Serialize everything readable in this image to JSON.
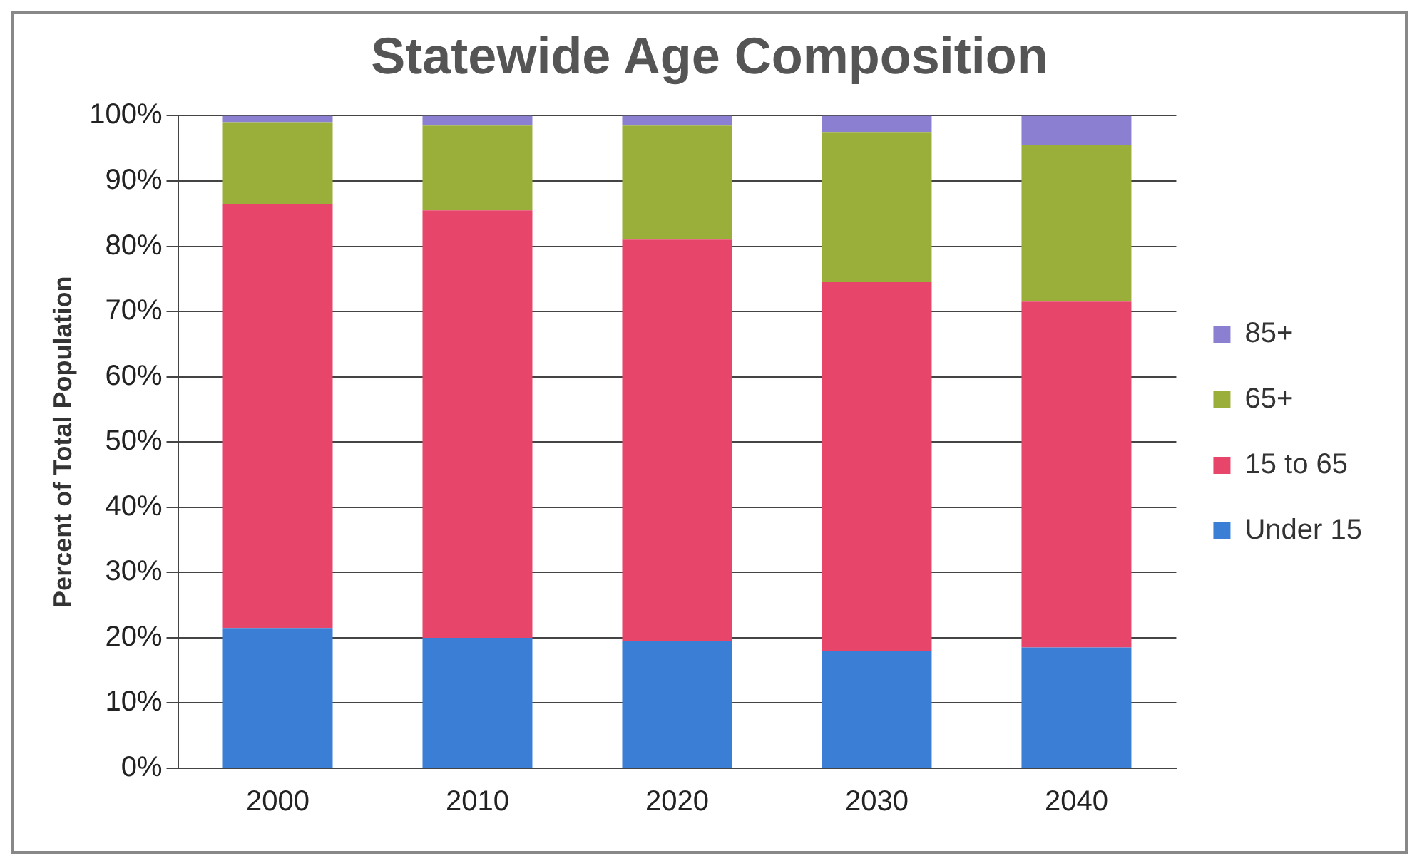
{
  "chart_data": {
    "type": "bar",
    "title": "Statewide Age Composition",
    "ylabel": "Percent of Total Population",
    "categories": [
      "2000",
      "2010",
      "2020",
      "2030",
      "2040"
    ],
    "stacked": true,
    "series": [
      {
        "name": "Under 15",
        "color": "#3a7fd5",
        "values": [
          21.5,
          20,
          19.5,
          18,
          18.5
        ]
      },
      {
        "name": "15 to 65",
        "color": "#e8456a",
        "values": [
          65,
          65.5,
          61.5,
          56.5,
          53
        ]
      },
      {
        "name": "65+",
        "color": "#9aaf3a",
        "values": [
          12.5,
          13,
          17.5,
          23,
          24
        ]
      },
      {
        "name": "85+",
        "color": "#8a7fd0",
        "values": [
          1,
          1.5,
          1.5,
          2.5,
          4.5
        ]
      }
    ],
    "ylim": [
      0,
      100
    ],
    "yticks": [
      {
        "value": 0,
        "label": "0%"
      },
      {
        "value": 10,
        "label": "10%"
      },
      {
        "value": 20,
        "label": "20%"
      },
      {
        "value": 30,
        "label": "30%"
      },
      {
        "value": 40,
        "label": "40%"
      },
      {
        "value": 50,
        "label": "50%"
      },
      {
        "value": 60,
        "label": "60%"
      },
      {
        "value": 70,
        "label": "70%"
      },
      {
        "value": 80,
        "label": "80%"
      },
      {
        "value": 90,
        "label": "90%"
      },
      {
        "value": 100,
        "label": "100%"
      }
    ],
    "grid": "y",
    "legend": "right"
  }
}
